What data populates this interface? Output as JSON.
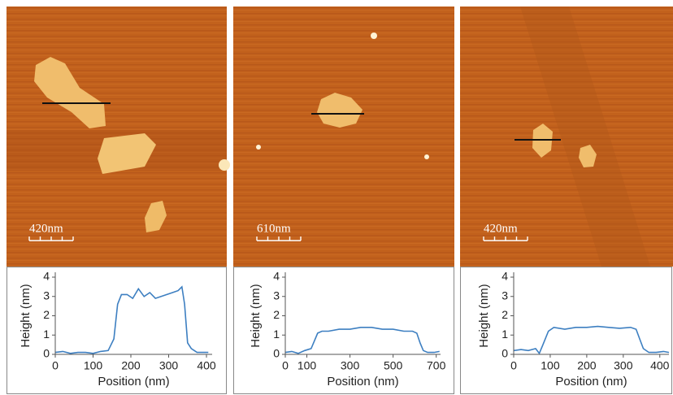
{
  "chart_data": [
    {
      "type": "line",
      "annotation": "420nm",
      "x_label": "Position (nm)",
      "y_label": "Height (nm)",
      "xlim": [
        0,
        415
      ],
      "xticks": [
        0,
        100,
        200,
        300,
        400
      ],
      "ylim": [
        0,
        4
      ],
      "yticks": [
        0,
        1,
        2,
        3,
        4
      ],
      "series": [
        {
          "color": "#3d7fc1",
          "x": [
            0,
            20,
            40,
            60,
            80,
            100,
            120,
            140,
            155,
            165,
            175,
            190,
            205,
            220,
            235,
            250,
            265,
            280,
            295,
            310,
            325,
            335,
            342,
            350,
            360,
            375,
            390,
            405
          ],
          "values": [
            0.1,
            0.15,
            0.05,
            0.1,
            0.1,
            0.05,
            0.15,
            0.2,
            0.8,
            2.6,
            3.1,
            3.1,
            2.9,
            3.4,
            3.0,
            3.2,
            2.9,
            3.0,
            3.1,
            3.2,
            3.3,
            3.5,
            2.6,
            0.6,
            0.3,
            0.1,
            0.1,
            0.1
          ]
        }
      ]
    },
    {
      "type": "line",
      "annotation": "610nm",
      "x_label": "Position (nm)",
      "y_label": "Height (nm)",
      "xlim": [
        0,
        720
      ],
      "xticks": [
        0,
        100,
        300,
        500,
        700
      ],
      "ylim": [
        0,
        4
      ],
      "yticks": [
        0,
        1,
        2,
        3,
        4
      ],
      "series": [
        {
          "color": "#3d7fc1",
          "x": [
            0,
            30,
            60,
            90,
            120,
            135,
            150,
            170,
            200,
            250,
            300,
            350,
            400,
            450,
            500,
            550,
            590,
            610,
            625,
            640,
            660,
            690,
            715
          ],
          "values": [
            0.1,
            0.15,
            0.05,
            0.2,
            0.3,
            0.7,
            1.1,
            1.2,
            1.2,
            1.3,
            1.3,
            1.4,
            1.4,
            1.3,
            1.3,
            1.2,
            1.2,
            1.1,
            0.6,
            0.2,
            0.1,
            0.1,
            0.15
          ]
        }
      ]
    },
    {
      "type": "line",
      "annotation": "420nm",
      "x_label": "Position (nm)",
      "y_label": "Height (nm)",
      "xlim": [
        0,
        425
      ],
      "xticks": [
        0,
        100,
        200,
        300,
        400
      ],
      "ylim": [
        0,
        4
      ],
      "yticks": [
        0,
        1,
        2,
        3,
        4
      ],
      "series": [
        {
          "color": "#3d7fc1",
          "x": [
            0,
            20,
            40,
            60,
            70,
            80,
            95,
            110,
            140,
            170,
            200,
            230,
            260,
            290,
            320,
            335,
            345,
            355,
            370,
            390,
            410,
            425
          ],
          "values": [
            0.2,
            0.25,
            0.2,
            0.3,
            0.05,
            0.5,
            1.2,
            1.4,
            1.3,
            1.4,
            1.4,
            1.45,
            1.4,
            1.35,
            1.4,
            1.3,
            0.8,
            0.3,
            0.1,
            0.1,
            0.15,
            0.1
          ]
        }
      ]
    }
  ]
}
